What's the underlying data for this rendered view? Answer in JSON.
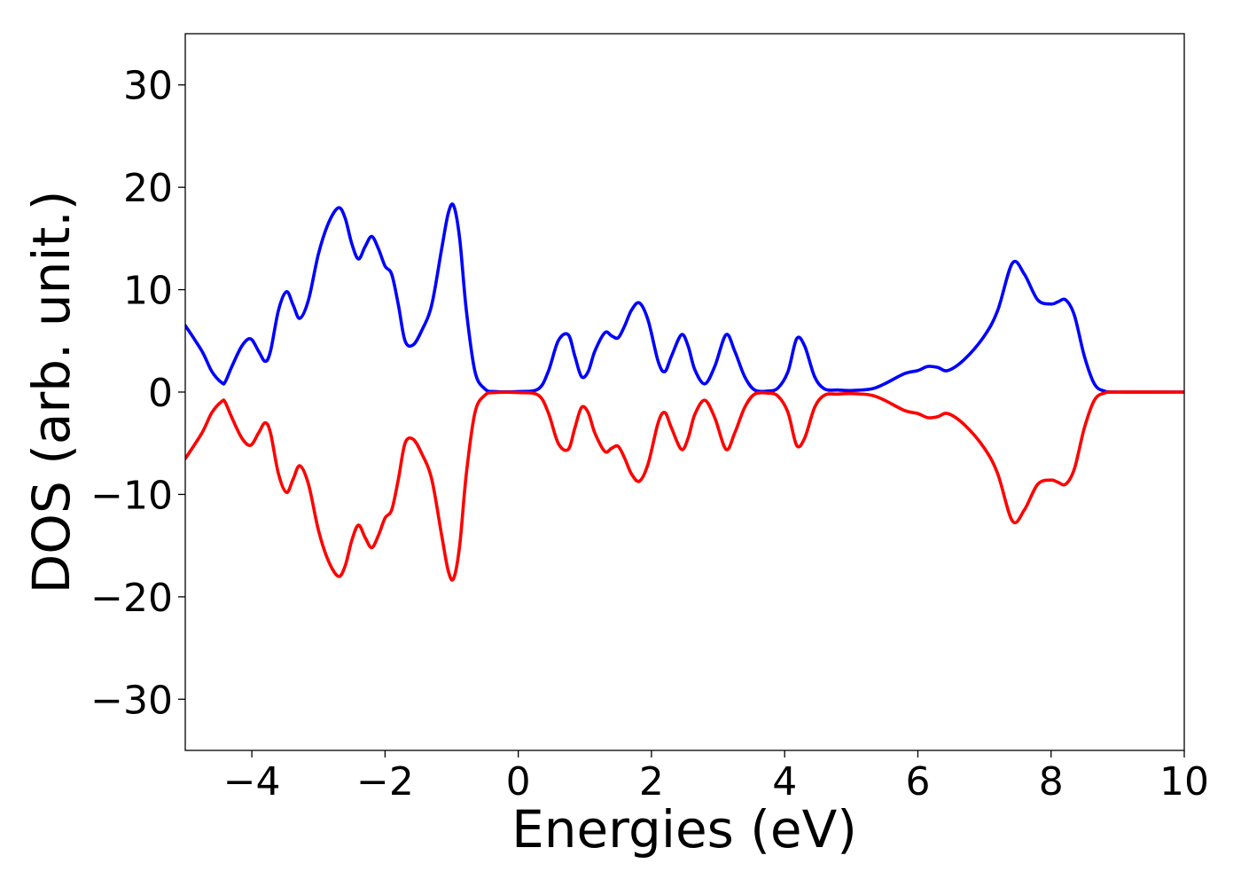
{
  "chart_data": {
    "type": "line",
    "title": "",
    "xlabel": "Energies (eV)",
    "ylabel": "DOS (arb. unit.)",
    "xlim": [
      -5,
      10
    ],
    "ylim": [
      -35,
      35
    ],
    "grid": false,
    "legend": "none",
    "xticks": [
      -4,
      -2,
      0,
      2,
      4,
      6,
      8,
      10
    ],
    "xtick_labels": [
      "−4",
      "−2",
      "0",
      "2",
      "4",
      "6",
      "8",
      "10"
    ],
    "yticks": [
      30,
      20,
      10,
      0,
      -10,
      -20,
      -30
    ],
    "ytick_labels": [
      "30",
      "20",
      "10",
      "0",
      "−10",
      "−20",
      "−30"
    ],
    "series": [
      {
        "color": "#0000ff",
        "x": [
          -5.0,
          -4.75,
          -4.6,
          -4.45,
          -4.4,
          -4.3,
          -4.15,
          -4.02,
          -3.9,
          -3.8,
          -3.72,
          -3.6,
          -3.48,
          -3.38,
          -3.28,
          -3.15,
          -3.0,
          -2.85,
          -2.7,
          -2.6,
          -2.5,
          -2.4,
          -2.3,
          -2.2,
          -2.1,
          -2.0,
          -1.9,
          -1.8,
          -1.7,
          -1.58,
          -1.45,
          -1.3,
          -1.15,
          -1.05,
          -0.97,
          -0.88,
          -0.78,
          -0.65,
          -0.5,
          -0.35,
          0.0,
          0.3,
          0.45,
          0.6,
          0.75,
          0.85,
          0.95,
          1.05,
          1.15,
          1.3,
          1.4,
          1.5,
          1.6,
          1.7,
          1.82,
          1.95,
          2.1,
          2.2,
          2.3,
          2.45,
          2.55,
          2.65,
          2.8,
          2.95,
          3.12,
          3.25,
          3.4,
          3.55,
          3.75,
          3.9,
          4.05,
          4.18,
          4.3,
          4.45,
          4.6,
          4.8,
          5.0,
          5.3,
          5.5,
          5.8,
          6.0,
          6.15,
          6.3,
          6.45,
          6.7,
          7.0,
          7.2,
          7.42,
          7.6,
          7.8,
          8.0,
          8.1,
          8.22,
          8.35,
          8.5,
          8.65,
          8.8,
          9.0,
          10.0
        ],
        "y": [
          6.5,
          4.0,
          2.0,
          0.9,
          1.0,
          2.5,
          4.5,
          5.2,
          4.0,
          3.0,
          4.0,
          8.0,
          9.8,
          8.5,
          7.2,
          9.0,
          13.5,
          16.5,
          18.0,
          17.0,
          14.5,
          13.0,
          14.2,
          15.2,
          14.0,
          12.3,
          11.5,
          8.5,
          5.0,
          4.6,
          6.0,
          8.5,
          14.0,
          17.5,
          18.2,
          15.0,
          8.0,
          2.0,
          0.3,
          0.05,
          0.05,
          0.3,
          2.0,
          5.0,
          5.6,
          3.5,
          1.5,
          2.0,
          4.0,
          5.8,
          5.5,
          5.3,
          6.5,
          8.0,
          8.7,
          7.0,
          3.0,
          2.0,
          3.5,
          5.6,
          4.5,
          2.2,
          0.8,
          2.5,
          5.6,
          4.0,
          1.5,
          0.2,
          0.1,
          0.4,
          2.0,
          5.2,
          4.5,
          1.5,
          0.3,
          0.2,
          0.15,
          0.3,
          0.8,
          1.8,
          2.1,
          2.5,
          2.4,
          2.1,
          3.2,
          5.5,
          8.0,
          12.6,
          11.5,
          9.0,
          8.6,
          8.8,
          9.0,
          7.5,
          3.5,
          0.8,
          0.1,
          0.0,
          0.0
        ]
      },
      {
        "color": "#ff0000",
        "x": [
          -5.0,
          -4.75,
          -4.6,
          -4.45,
          -4.4,
          -4.3,
          -4.15,
          -4.02,
          -3.9,
          -3.8,
          -3.72,
          -3.6,
          -3.48,
          -3.38,
          -3.28,
          -3.15,
          -3.0,
          -2.85,
          -2.7,
          -2.6,
          -2.5,
          -2.4,
          -2.3,
          -2.2,
          -2.1,
          -2.0,
          -1.9,
          -1.8,
          -1.7,
          -1.58,
          -1.45,
          -1.3,
          -1.15,
          -1.05,
          -0.97,
          -0.88,
          -0.78,
          -0.65,
          -0.5,
          -0.35,
          0.0,
          0.3,
          0.45,
          0.6,
          0.75,
          0.85,
          0.95,
          1.05,
          1.15,
          1.3,
          1.4,
          1.5,
          1.6,
          1.7,
          1.82,
          1.95,
          2.1,
          2.2,
          2.3,
          2.45,
          2.55,
          2.65,
          2.8,
          2.95,
          3.12,
          3.25,
          3.4,
          3.55,
          3.75,
          3.9,
          4.05,
          4.18,
          4.3,
          4.45,
          4.6,
          4.8,
          5.0,
          5.3,
          5.5,
          5.8,
          6.0,
          6.15,
          6.3,
          6.45,
          6.7,
          7.0,
          7.2,
          7.42,
          7.6,
          7.8,
          8.0,
          8.1,
          8.22,
          8.35,
          8.5,
          8.65,
          8.8,
          9.0,
          10.0
        ],
        "y": [
          -6.5,
          -4.0,
          -2.0,
          -0.9,
          -1.0,
          -2.5,
          -4.5,
          -5.2,
          -4.0,
          -3.0,
          -4.0,
          -8.0,
          -9.8,
          -8.5,
          -7.2,
          -9.0,
          -13.5,
          -16.5,
          -18.0,
          -17.0,
          -14.5,
          -13.0,
          -14.2,
          -15.2,
          -14.0,
          -12.3,
          -11.5,
          -8.5,
          -5.0,
          -4.6,
          -6.0,
          -8.5,
          -14.0,
          -17.5,
          -18.2,
          -15.0,
          -8.0,
          -2.0,
          -0.3,
          -0.05,
          -0.05,
          -0.3,
          -2.0,
          -5.0,
          -5.6,
          -3.5,
          -1.5,
          -2.0,
          -4.0,
          -5.8,
          -5.5,
          -5.3,
          -6.5,
          -8.0,
          -8.7,
          -7.0,
          -3.0,
          -2.0,
          -3.5,
          -5.6,
          -4.5,
          -2.2,
          -0.8,
          -2.5,
          -5.6,
          -4.0,
          -1.5,
          -0.2,
          -0.1,
          -0.4,
          -2.0,
          -5.2,
          -4.5,
          -1.5,
          -0.3,
          -0.2,
          -0.15,
          -0.3,
          -0.8,
          -1.8,
          -2.1,
          -2.5,
          -2.4,
          -2.1,
          -3.2,
          -5.5,
          -8.0,
          -12.6,
          -11.5,
          -9.0,
          -8.6,
          -8.8,
          -9.0,
          -7.5,
          -3.5,
          -0.8,
          -0.1,
          0.0,
          0.0
        ]
      }
    ]
  }
}
